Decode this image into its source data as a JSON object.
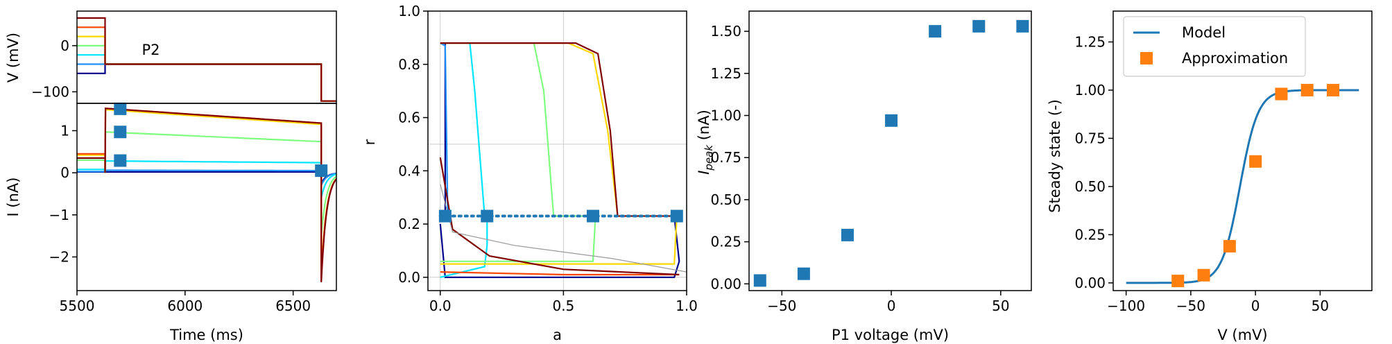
{
  "chart_data": [
    {
      "type": "line",
      "panel": "voltage-protocol",
      "ylabel": "V (mV)",
      "xlabel": "",
      "xlim": [
        5500,
        6700
      ],
      "ylim": [
        -125,
        75
      ],
      "yticks": [
        -100,
        0
      ],
      "ytick_labels": [
        "−100",
        "0"
      ],
      "annotation": "P2",
      "series": [
        {
          "color": "#00008b",
          "p1": -60
        },
        {
          "color": "#1e90ff",
          "p1": -40
        },
        {
          "color": "#00e5ff",
          "p1": -20
        },
        {
          "color": "#7fff7f",
          "p1": 0
        },
        {
          "color": "#ffd700",
          "p1": 20
        },
        {
          "color": "#ff4500",
          "p1": 40
        },
        {
          "color": "#800000",
          "p1": 60
        }
      ],
      "p1_end": 5630,
      "p2_level": -40,
      "p2_end": 6630,
      "after_level": -120
    },
    {
      "type": "line",
      "panel": "current-traces",
      "ylabel": "I (nA)",
      "xlabel": "Time (ms)",
      "xlim": [
        5500,
        6700
      ],
      "ylim": [
        -2.8,
        1.65
      ],
      "xticks": [
        5500,
        6000,
        6500
      ],
      "xtick_labels": [
        "5500",
        "6000",
        "6500"
      ],
      "yticks": [
        -2,
        -1,
        0,
        1
      ],
      "ytick_labels": [
        "−2",
        "−1",
        "0",
        "1"
      ],
      "series": [
        {
          "color": "#00008b",
          "pre": 0.02,
          "start": 0.02,
          "end": 0.02,
          "tail_min": -0.25
        },
        {
          "color": "#1e90ff",
          "pre": 0.03,
          "start": 0.06,
          "end": 0.05,
          "tail_min": -0.3
        },
        {
          "color": "#00e5ff",
          "pre": 0.08,
          "start": 0.28,
          "end": 0.24,
          "tail_min": -0.6
        },
        {
          "color": "#7fff7f",
          "pre": 0.3,
          "start": 0.97,
          "end": 0.74,
          "tail_min": -1.5
        },
        {
          "color": "#ffd700",
          "pre": 0.42,
          "start": 1.5,
          "end": 1.15,
          "tail_min": -2.4
        },
        {
          "color": "#ff4500",
          "pre": 0.45,
          "start": 1.53,
          "end": 1.18,
          "tail_min": -2.5
        },
        {
          "color": "#800000",
          "pre": 0.35,
          "start": 1.53,
          "end": 1.18,
          "tail_min": -2.6
        }
      ],
      "trace_start": 5500,
      "p1_end": 5630,
      "p2_end": 6630,
      "markers": [
        {
          "x": 5700,
          "y": 1.52
        },
        {
          "x": 5700,
          "y": 0.97
        },
        {
          "x": 5700,
          "y": 0.29
        },
        {
          "x": 6630,
          "y": 0.05
        }
      ],
      "marker_color": "#1f77b4"
    },
    {
      "type": "line",
      "panel": "phase-plane",
      "xlabel": "a",
      "ylabel": "r",
      "xlim": [
        -0.05,
        1.0
      ],
      "ylim": [
        -0.05,
        1.0
      ],
      "xticks": [
        0.0,
        0.5,
        1.0
      ],
      "xtick_labels": [
        "0.0",
        "0.5",
        "1.0"
      ],
      "yticks": [
        0.0,
        0.2,
        0.4,
        0.6,
        0.8,
        1.0
      ],
      "ytick_labels": [
        "0.0",
        "0.2",
        "0.4",
        "0.6",
        "0.8",
        "1.0"
      ],
      "grid_lines_x": [
        0.0,
        0.5
      ],
      "grid_lines_y": [
        0.0,
        0.5
      ],
      "trajectories": [
        {
          "color": "#00008b",
          "points": [
            [
              0.0,
              0.88
            ],
            [
              0.02,
              0.88
            ],
            [
              0.02,
              0.23
            ],
            [
              0.0,
              0.23
            ]
          ]
        },
        {
          "color": "#1e90ff",
          "points": [
            [
              0.0,
              0.88
            ],
            [
              0.02,
              0.87
            ],
            [
              0.03,
              0.25
            ],
            [
              0.03,
              0.23
            ]
          ]
        },
        {
          "color": "#00e5ff",
          "points": [
            [
              0.0,
              0.88
            ],
            [
              0.12,
              0.88
            ],
            [
              0.14,
              0.7
            ],
            [
              0.18,
              0.23
            ],
            [
              0.19,
              0.23
            ]
          ]
        },
        {
          "color": "#7fff7f",
          "points": [
            [
              0.0,
              0.88
            ],
            [
              0.38,
              0.88
            ],
            [
              0.42,
              0.7
            ],
            [
              0.46,
              0.23
            ],
            [
              0.62,
              0.23
            ]
          ]
        },
        {
          "color": "#ffd700",
          "points": [
            [
              0.0,
              0.88
            ],
            [
              0.52,
              0.88
            ],
            [
              0.62,
              0.84
            ],
            [
              0.68,
              0.55
            ],
            [
              0.72,
              0.23
            ],
            [
              0.95,
              0.23
            ]
          ]
        },
        {
          "color": "#800000",
          "points": [
            [
              0.0,
              0.88
            ],
            [
              0.55,
              0.88
            ],
            [
              0.64,
              0.84
            ],
            [
              0.69,
              0.55
            ],
            [
              0.72,
              0.23
            ],
            [
              0.97,
              0.23
            ]
          ]
        },
        {
          "color": "#00008b",
          "points": [
            [
              0.95,
              0.23
            ],
            [
              0.97,
              0.06
            ],
            [
              0.95,
              0.0
            ],
            [
              0.5,
              0.0
            ],
            [
              0.02,
              0.0
            ],
            [
              0.0,
              0.2
            ]
          ]
        },
        {
          "color": "#00e5ff",
          "points": [
            [
              0.0,
              0.0
            ],
            [
              0.18,
              0.04
            ],
            [
              0.19,
              0.12
            ],
            [
              0.19,
              0.23
            ]
          ]
        },
        {
          "color": "#7fff7f",
          "points": [
            [
              0.0,
              0.06
            ],
            [
              0.62,
              0.06
            ],
            [
              0.63,
              0.23
            ]
          ]
        },
        {
          "color": "#ffd700",
          "points": [
            [
              0.0,
              0.05
            ],
            [
              0.95,
              0.05
            ],
            [
              0.96,
              0.23
            ]
          ]
        },
        {
          "color": "#ff4500",
          "points": [
            [
              0.0,
              0.02
            ],
            [
              0.5,
              0.01
            ],
            [
              0.97,
              0.01
            ]
          ]
        },
        {
          "color": "#800000",
          "points": [
            [
              0.0,
              0.45
            ],
            [
              0.05,
              0.18
            ],
            [
              0.2,
              0.08
            ],
            [
              0.5,
              0.03
            ],
            [
              0.97,
              0.01
            ]
          ]
        },
        {
          "color": "#999999",
          "points": [
            [
              0.0,
              0.35
            ],
            [
              0.05,
              0.17
            ],
            [
              0.3,
              0.12
            ],
            [
              0.7,
              0.07
            ],
            [
              1.0,
              0.02
            ]
          ]
        }
      ],
      "dotted_line": {
        "y": 0.23,
        "x_start": 0.0,
        "x_end": 0.97,
        "color": "#1f77b4"
      },
      "markers": [
        {
          "x": 0.02,
          "y": 0.23
        },
        {
          "x": 0.19,
          "y": 0.23
        },
        {
          "x": 0.62,
          "y": 0.23
        },
        {
          "x": 0.96,
          "y": 0.23
        }
      ],
      "marker_color": "#1f77b4"
    },
    {
      "type": "scatter",
      "panel": "peak-current",
      "xlabel": "P1 voltage (mV)",
      "ylabel": "I",
      "ylabel_subscript": "peak",
      "ylabel_unit": " (nA)",
      "xlim": [
        -65,
        64
      ],
      "ylim": [
        -0.04,
        1.62
      ],
      "xticks": [
        -50,
        0,
        50
      ],
      "xtick_labels": [
        "−50",
        "0",
        "50"
      ],
      "yticks": [
        0.0,
        0.25,
        0.5,
        0.75,
        1.0,
        1.25,
        1.5
      ],
      "ytick_labels": [
        "0.00",
        "0.25",
        "0.50",
        "0.75",
        "1.00",
        "1.25",
        "1.50"
      ],
      "x": [
        -60,
        -40,
        -20,
        0,
        20,
        40,
        60
      ],
      "y": [
        0.02,
        0.06,
        0.29,
        0.97,
        1.5,
        1.53,
        1.53
      ],
      "marker_color": "#1f77b4"
    },
    {
      "type": "line",
      "panel": "steady-state",
      "xlabel": "V (mV)",
      "ylabel": "Steady state (-)",
      "xlim": [
        -110,
        90
      ],
      "ylim": [
        -0.04,
        1.41
      ],
      "xticks": [
        -100,
        -50,
        0,
        50
      ],
      "xtick_labels": [
        "−100",
        "−50",
        "0",
        "50"
      ],
      "yticks": [
        0.0,
        0.25,
        0.5,
        0.75,
        1.0,
        1.25
      ],
      "ytick_labels": [
        "0.00",
        "0.25",
        "0.50",
        "0.75",
        "1.00",
        "1.25"
      ],
      "legend_position": "upper-left",
      "series": [
        {
          "name": "Model",
          "color": "#1f77b4",
          "kind": "line",
          "v_half": -12,
          "slope": 7,
          "x_range": [
            -100,
            80
          ]
        },
        {
          "name": "Approximation",
          "color": "#ff7f0e",
          "kind": "marker",
          "x": [
            -60,
            -40,
            -20,
            0,
            20,
            40,
            60
          ],
          "y": [
            0.01,
            0.04,
            0.19,
            0.63,
            0.98,
            1.0,
            1.0
          ]
        }
      ]
    }
  ]
}
